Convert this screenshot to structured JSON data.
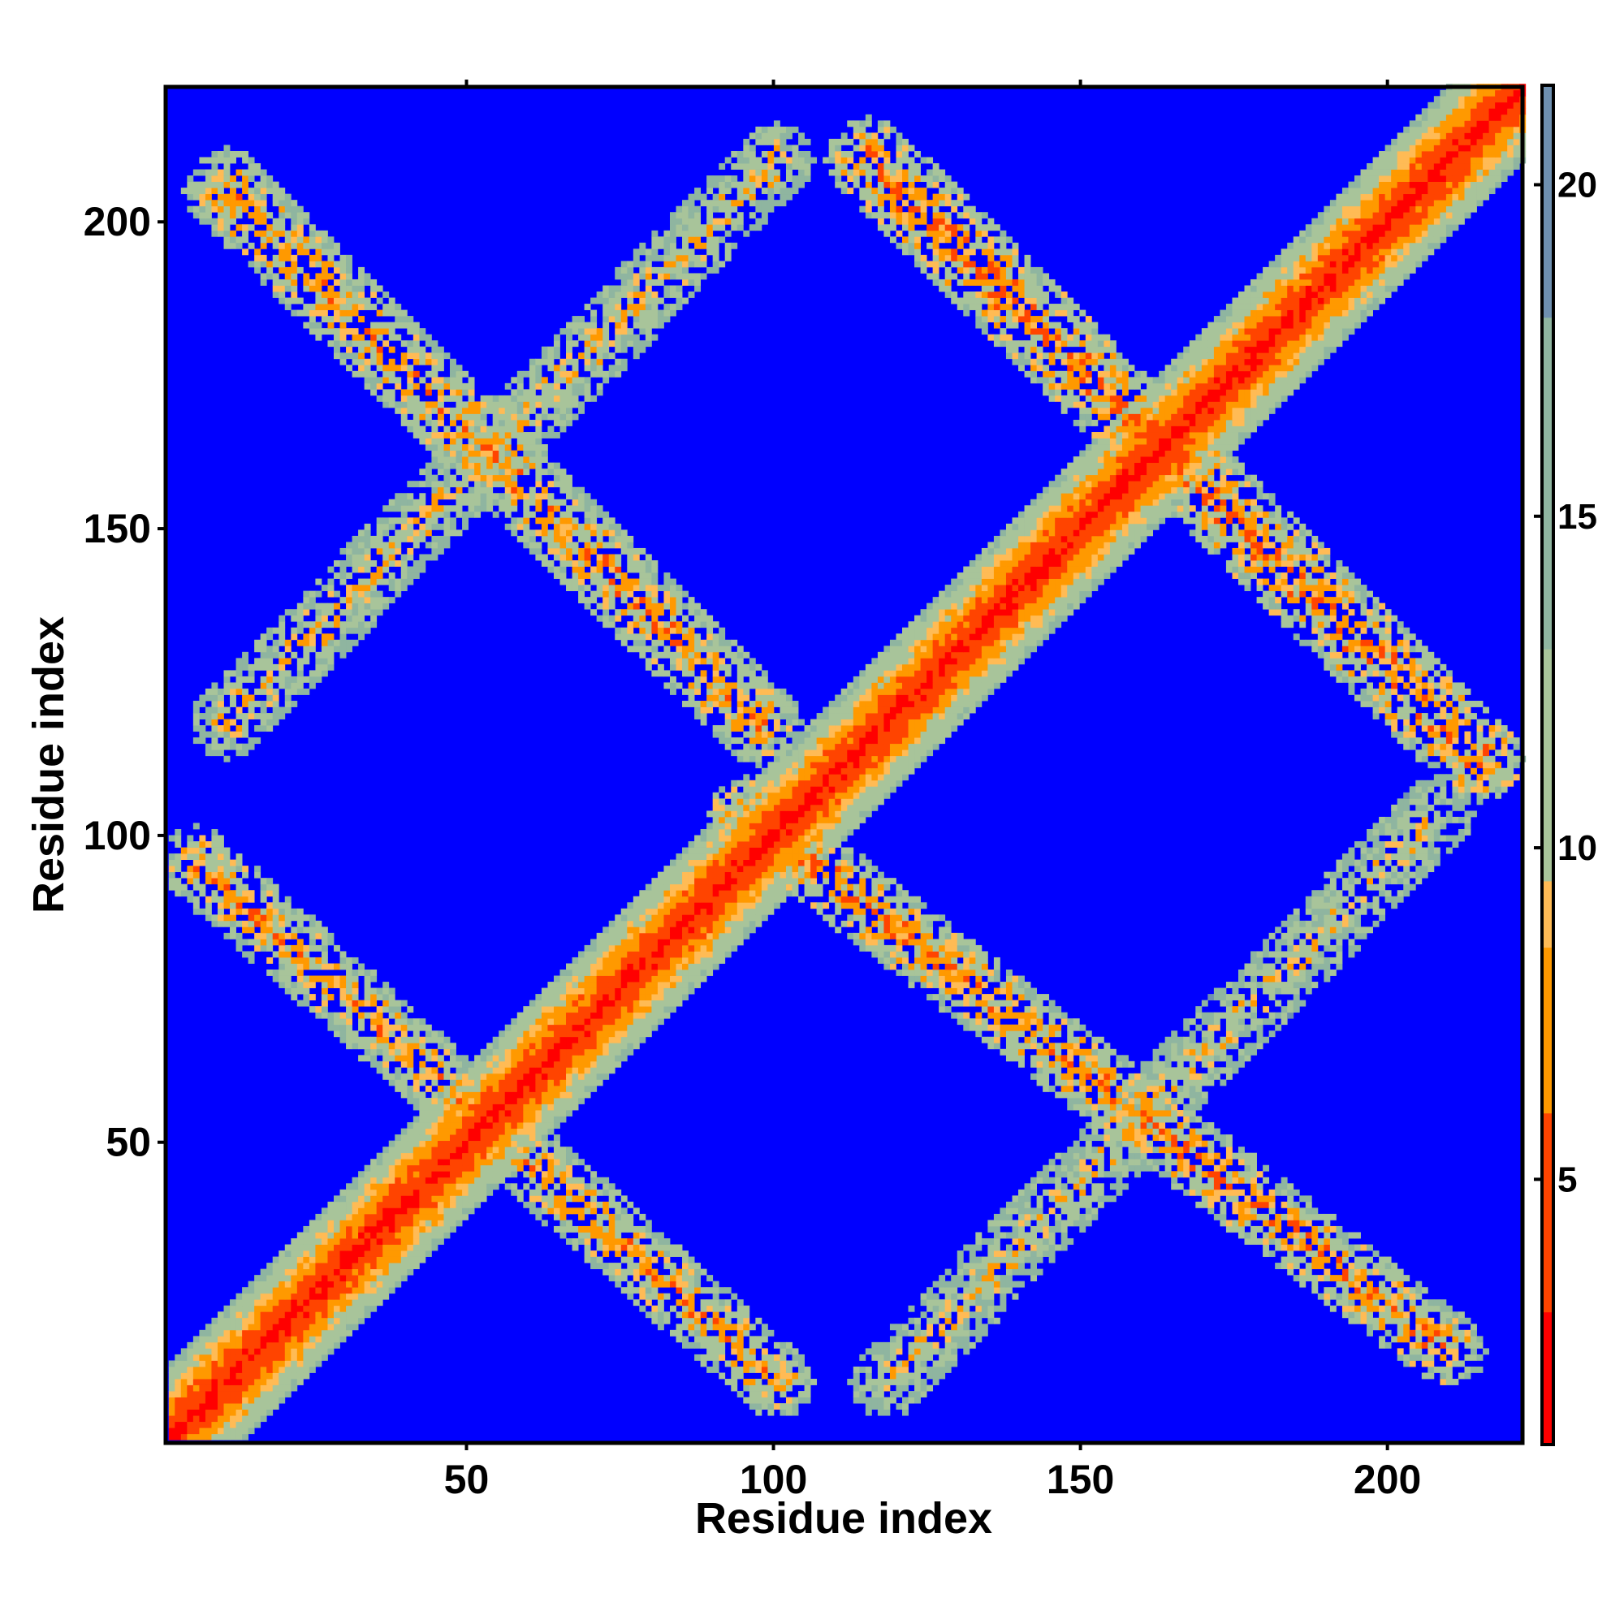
{
  "chart_data": {
    "type": "heatmap",
    "title": "",
    "xlabel": "Residue index",
    "ylabel": "Residue index",
    "n_residues": 222,
    "xlim": [
      1,
      222
    ],
    "ylim": [
      1,
      222
    ],
    "x_ticks": [
      {
        "value": 50,
        "label": "50"
      },
      {
        "value": 100,
        "label": "100"
      },
      {
        "value": 150,
        "label": "150"
      },
      {
        "value": 200,
        "label": "200"
      }
    ],
    "y_ticks": [
      {
        "value": 50,
        "label": "50"
      },
      {
        "value": 100,
        "label": "100"
      },
      {
        "value": 150,
        "label": "150"
      },
      {
        "value": 200,
        "label": "200"
      }
    ],
    "colorbar": {
      "range": [
        1,
        21.5
      ],
      "ticks": [
        {
          "value": 5,
          "label": "5"
        },
        {
          "value": 10,
          "label": "10"
        },
        {
          "value": 15,
          "label": "15"
        },
        {
          "value": 20,
          "label": "20"
        }
      ],
      "colors": [
        "#ff0000",
        "#ff4400",
        "#ff9900",
        "#ffbb55",
        "#a8c49a",
        "#8fb5a0",
        "#6f90b0",
        "#0000ff"
      ],
      "stops": [
        1,
        3,
        6,
        8.5,
        9.5,
        13,
        18,
        21.5
      ]
    },
    "background_value": 21.5,
    "background_color": "#0000ff",
    "contact_bands": [
      {
        "name": "main-diagonal",
        "type": "diagonal",
        "from": [
          1,
          1
        ],
        "to": [
          222,
          222
        ],
        "half_width": 9,
        "core": 2.0
      },
      {
        "name": "antidiagonal-lower-left",
        "type": "anti",
        "from": [
          5,
          95
        ],
        "to": [
          100,
          10
        ],
        "half_width": 6,
        "core": 7.5
      },
      {
        "name": "antidiagonal-upper-left",
        "type": "anti",
        "from": [
          10,
          205
        ],
        "to": [
          97,
          118
        ],
        "half_width": 7,
        "core": 7.5
      },
      {
        "name": "antidiagonal-upper-right",
        "type": "anti",
        "from": [
          115,
          210
        ],
        "to": [
          215,
          112
        ],
        "half_width": 7,
        "core": 6.5
      },
      {
        "name": "antidiagonal-lower-right",
        "type": "anti",
        "from": [
          95,
          103
        ],
        "to": [
          210,
          15
        ],
        "half_width": 6,
        "core": 7.0
      },
      {
        "name": "parallel-upper-left",
        "type": "parallel",
        "from": [
          10,
          118
        ],
        "to": [
          100,
          210
        ],
        "half_width": 6,
        "core": 9.0
      },
      {
        "name": "parallel-lower-right",
        "type": "parallel",
        "from": [
          118,
          10
        ],
        "to": [
          208,
          103
        ],
        "half_width": 6,
        "core": 9.5
      }
    ]
  }
}
